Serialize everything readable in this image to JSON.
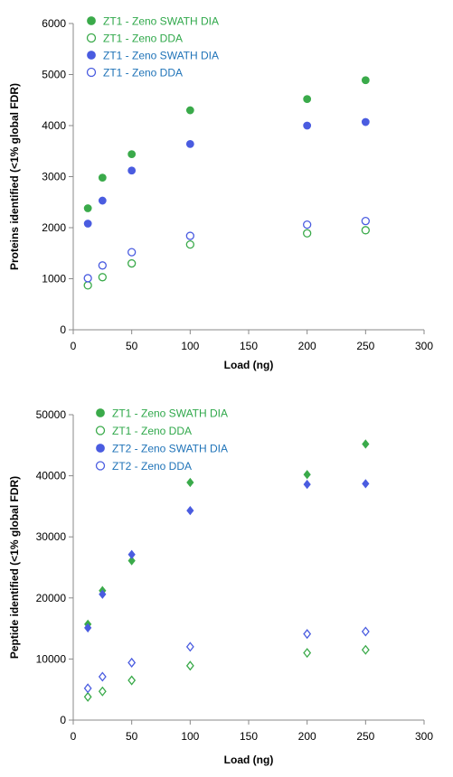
{
  "colors": {
    "green": "#3aaa4a",
    "blue": "#4a5ce0",
    "green_text": "#2fa84a",
    "blue_text": "#1f73b8"
  },
  "chart_data": [
    {
      "type": "scatter",
      "xlabel": "Load (ng)",
      "ylabel": "Proteins identified (<1% global FDR)",
      "xlim": [
        0,
        300
      ],
      "ylim": [
        0,
        6000
      ],
      "xticks": [
        0,
        50,
        100,
        150,
        200,
        250,
        300
      ],
      "yticks": [
        0,
        1000,
        2000,
        3000,
        4000,
        5000,
        6000
      ],
      "grid": false,
      "legend_position": "top-left",
      "series": [
        {
          "name": "ZT1 - Zeno SWATH DIA",
          "marker": "circle",
          "filled": true,
          "color": "#3aaa4a",
          "x": [
            12.5,
            25,
            50,
            100,
            200,
            250
          ],
          "y": [
            2380,
            2980,
            3440,
            4300,
            4520,
            4890
          ]
        },
        {
          "name": "ZT1 - Zeno DDA",
          "marker": "circle",
          "filled": false,
          "color": "#3aaa4a",
          "x": [
            12.5,
            25,
            50,
            100,
            200,
            250
          ],
          "y": [
            870,
            1030,
            1300,
            1670,
            1890,
            1950
          ]
        },
        {
          "name": "ZT1 - Zeno SWATH DIA",
          "marker": "circle",
          "filled": true,
          "color": "#4a5ce0",
          "x": [
            12.5,
            25,
            50,
            100,
            200,
            250
          ],
          "y": [
            2080,
            2530,
            3120,
            3640,
            4000,
            4070
          ]
        },
        {
          "name": "ZT1 - Zeno DDA",
          "marker": "circle",
          "filled": false,
          "color": "#4a5ce0",
          "x": [
            12.5,
            25,
            50,
            100,
            200,
            250
          ],
          "y": [
            1010,
            1260,
            1520,
            1840,
            2060,
            2130
          ]
        }
      ]
    },
    {
      "type": "scatter",
      "xlabel": "Load (ng)",
      "ylabel": "Peptide identified (<1% global FDR)",
      "xlim": [
        0,
        300
      ],
      "ylim": [
        0,
        50000
      ],
      "xticks": [
        0,
        50,
        100,
        150,
        200,
        250,
        300
      ],
      "yticks": [
        0,
        10000,
        20000,
        30000,
        40000,
        50000
      ],
      "grid": false,
      "legend_position": "top-left",
      "series": [
        {
          "name": "ZT1 - Zeno SWATH DIA",
          "marker": "diamond",
          "filled": true,
          "color": "#3aaa4a",
          "legend_marker": "circle",
          "x": [
            12.5,
            25,
            50,
            100,
            200,
            250
          ],
          "y": [
            15700,
            21200,
            26100,
            38900,
            40200,
            45200
          ]
        },
        {
          "name": "ZT1 - Zeno DDA",
          "marker": "diamond",
          "filled": false,
          "color": "#3aaa4a",
          "legend_marker": "circle",
          "x": [
            12.5,
            25,
            50,
            100,
            200,
            250
          ],
          "y": [
            3800,
            4700,
            6500,
            8900,
            11000,
            11500
          ]
        },
        {
          "name": "ZT2 - Zeno SWATH DIA",
          "marker": "diamond",
          "filled": true,
          "color": "#4a5ce0",
          "legend_marker": "circle",
          "x": [
            12.5,
            25,
            50,
            100,
            200,
            250
          ],
          "y": [
            15100,
            20600,
            27100,
            34300,
            38600,
            38700
          ]
        },
        {
          "name": "ZT2 - Zeno DDA",
          "marker": "diamond",
          "filled": false,
          "color": "#4a5ce0",
          "legend_marker": "circle",
          "x": [
            12.5,
            25,
            50,
            100,
            200,
            250
          ],
          "y": [
            5200,
            7100,
            9400,
            12000,
            14100,
            14500
          ]
        }
      ]
    }
  ]
}
